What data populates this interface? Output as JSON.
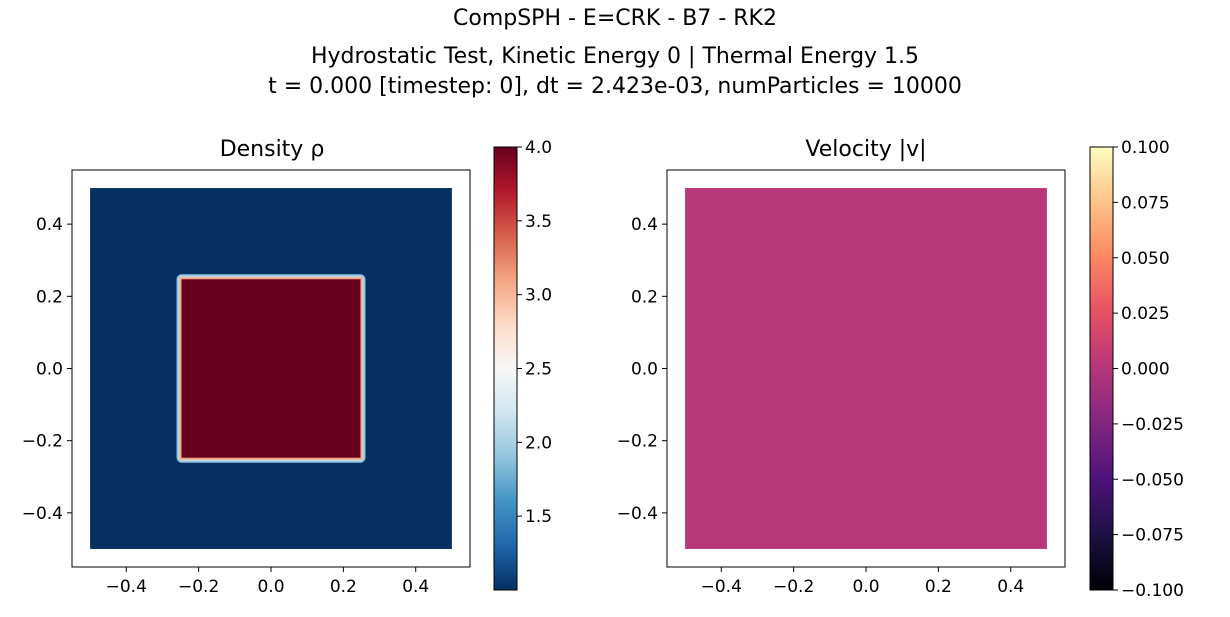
{
  "figure": {
    "title_line1": "CompSPH - E=CRK - B7 - RK2",
    "title_line2": "Hydrostatic Test, Kinetic Energy 0 | Thermal Energy 1.5",
    "title_line3": "t = 0.000 [timestep: 0], dt = 2.423e-03, numParticles = 10000"
  },
  "chart_data": [
    {
      "type": "heatmap",
      "title": "Density ρ",
      "xlim": [
        -0.55,
        0.55
      ],
      "ylim": [
        -0.55,
        0.55
      ],
      "xticks": [
        -0.4,
        -0.2,
        0.0,
        0.2,
        0.4
      ],
      "yticks": [
        -0.4,
        -0.2,
        0.0,
        0.2,
        0.4
      ],
      "xtick_labels": [
        "−0.4",
        "−0.2",
        "0.0",
        "0.2",
        "0.4"
      ],
      "ytick_labels": [
        "−0.4",
        "−0.2",
        "0.0",
        "0.2",
        "0.4"
      ],
      "domain": {
        "x": [
          -0.5,
          0.5
        ],
        "y": [
          -0.5,
          0.5
        ]
      },
      "regions": [
        {
          "x": [
            -0.5,
            0.5
          ],
          "y": [
            -0.5,
            0.5
          ],
          "value": 1.0
        },
        {
          "x": [
            -0.25,
            0.25
          ],
          "y": [
            -0.25,
            0.25
          ],
          "value": 4.0
        }
      ],
      "colormap": "RdBu_r",
      "colorbar": {
        "range": [
          1.0,
          4.0
        ],
        "ticks": [
          1.5,
          2.0,
          2.5,
          3.0,
          3.5,
          4.0
        ],
        "tick_labels": [
          "1.5",
          "2.0",
          "2.5",
          "3.0",
          "3.5",
          "4.0"
        ]
      },
      "colors": {
        "low": "#053061",
        "high": "#67001f",
        "edge": "#f4a582"
      },
      "grid": false
    },
    {
      "type": "heatmap",
      "title": "Velocity |v|",
      "xlim": [
        -0.55,
        0.55
      ],
      "ylim": [
        -0.55,
        0.55
      ],
      "xticks": [
        -0.4,
        -0.2,
        0.0,
        0.2,
        0.4
      ],
      "yticks": [
        -0.4,
        -0.2,
        0.0,
        0.2,
        0.4
      ],
      "xtick_labels": [
        "−0.4",
        "−0.2",
        "0.0",
        "0.2",
        "0.4"
      ],
      "ytick_labels": [
        "−0.4",
        "−0.2",
        "0.0",
        "0.2",
        "0.4"
      ],
      "domain": {
        "x": [
          -0.5,
          0.5
        ],
        "y": [
          -0.5,
          0.5
        ]
      },
      "regions": [
        {
          "x": [
            -0.5,
            0.5
          ],
          "y": [
            -0.5,
            0.5
          ],
          "value": 0.0
        }
      ],
      "colormap": "magma",
      "colorbar": {
        "range": [
          -0.1,
          0.1
        ],
        "ticks": [
          -0.1,
          -0.075,
          -0.05,
          -0.025,
          0.0,
          0.025,
          0.05,
          0.075,
          0.1
        ],
        "tick_labels": [
          "−0.100",
          "−0.075",
          "−0.050",
          "−0.025",
          "0.000",
          "0.025",
          "0.050",
          "0.075",
          "0.100"
        ]
      },
      "colors": {
        "fill": "#b73779"
      },
      "grid": false
    }
  ]
}
